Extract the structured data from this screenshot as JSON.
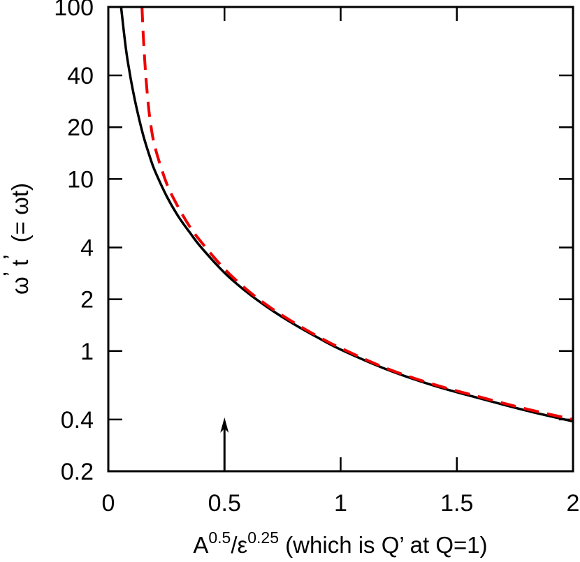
{
  "chart_data": {
    "type": "line",
    "title": "",
    "xlabel": {
      "base1": "A",
      "exp1": "0.5",
      "slash": "/",
      "base2": "ε",
      "exp2": "0.25",
      "tail": " (which is Q’ at Q=1)"
    },
    "ylabel": {
      "omega": "ω",
      "prime1": "’",
      "t": " t",
      "prime2": "’",
      "tail": "  (= ωt)"
    },
    "x_scale": "linear",
    "y_scale": "log",
    "xlim": [
      0,
      2
    ],
    "ylim": [
      0.2,
      100
    ],
    "x_ticks": [
      0,
      0.5,
      1,
      1.5,
      2
    ],
    "x_tick_labels": [
      "0",
      "0.5",
      "1",
      "1.5",
      "2"
    ],
    "y_ticks": [
      0.2,
      0.4,
      1,
      2,
      4,
      10,
      20,
      40,
      100
    ],
    "y_tick_labels": [
      "0.2",
      "0.4",
      "1",
      "2",
      "4",
      "10",
      "20",
      "40",
      "100"
    ],
    "grid": false,
    "legend": "none",
    "series": [
      {
        "style": "solid",
        "color": "#000000",
        "x": [
          0.055,
          0.06,
          0.07,
          0.08,
          0.09,
          0.1,
          0.12,
          0.15,
          0.18,
          0.2,
          0.25,
          0.3,
          0.35,
          0.4,
          0.5,
          0.6,
          0.7,
          0.8,
          0.9,
          1.0,
          1.2,
          1.4,
          1.6,
          1.8,
          2.0
        ],
        "y": [
          100,
          87,
          66,
          52,
          43,
          36,
          26.5,
          18.0,
          13.3,
          11.2,
          8.0,
          6.1,
          4.9,
          4.0,
          2.85,
          2.18,
          1.74,
          1.43,
          1.2,
          1.02,
          0.78,
          0.63,
          0.53,
          0.45,
          0.39
        ]
      },
      {
        "style": "dashed",
        "color": "#ee0000",
        "x": [
          0.145,
          0.15,
          0.16,
          0.17,
          0.18,
          0.2,
          0.25,
          0.3,
          0.35,
          0.4,
          0.5,
          0.6,
          0.7,
          0.8,
          0.9,
          1.0,
          1.2,
          1.4,
          1.6,
          1.8,
          2.0
        ],
        "y": [
          100,
          70,
          42,
          29,
          22,
          15.5,
          9.5,
          6.9,
          5.3,
          4.3,
          3.0,
          2.25,
          1.78,
          1.46,
          1.22,
          1.04,
          0.79,
          0.64,
          0.54,
          0.46,
          0.4
        ]
      }
    ],
    "annotations": [
      {
        "type": "arrow",
        "x": 0.5,
        "y_from": 0.2,
        "y_to": 0.4,
        "color": "#000000"
      }
    ]
  }
}
